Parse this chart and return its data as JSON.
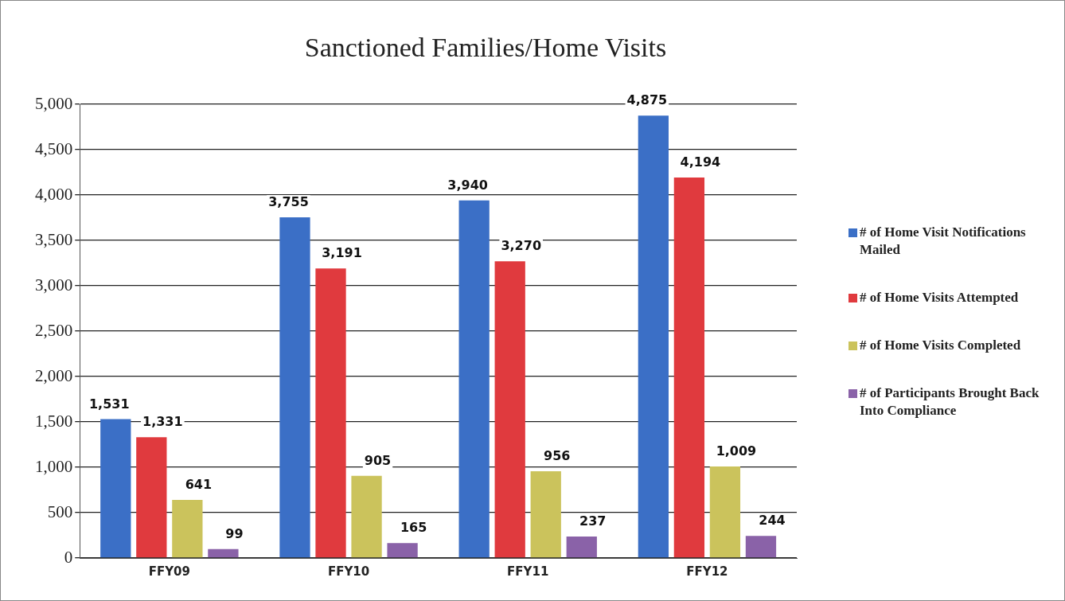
{
  "chart_data": {
    "type": "bar",
    "title": "Sanctioned Families/Home Visits",
    "categories": [
      "FFY09",
      "FFY10",
      "FFY11",
      "FFY12"
    ],
    "series": [
      {
        "name": "# of Home Visit Notifications Mailed",
        "color": "#3b6fc6",
        "values": [
          1531,
          3755,
          3940,
          4875
        ],
        "value_labels": [
          "1,531",
          "3,755",
          "3,940",
          "4,875"
        ]
      },
      {
        "name": "# of Home Visits Attempted",
        "color": "#e03a3e",
        "values": [
          1331,
          3191,
          3270,
          4194
        ],
        "value_labels": [
          "1,331",
          "3,191",
          "3,270",
          "4,194"
        ]
      },
      {
        "name": "# of Home Visits Completed",
        "color": "#cbc35c",
        "values": [
          641,
          905,
          956,
          1009
        ],
        "value_labels": [
          "641",
          "905",
          "956",
          "1,009"
        ]
      },
      {
        "name": "# of Participants Brought Back Into Compliance",
        "color": "#8a62a8",
        "values": [
          99,
          165,
          237,
          244
        ],
        "value_labels": [
          "99",
          "165",
          "237",
          "244"
        ]
      }
    ],
    "ylim": [
      0,
      5000
    ],
    "yticks": [
      0,
      500,
      {
        "value": 1000,
        "label": "1,000"
      },
      {
        "value": 1500,
        "label": "1,500"
      },
      {
        "value": 2000,
        "label": "2,000"
      },
      {
        "value": 2500,
        "label": "2,500"
      },
      {
        "value": 3000,
        "label": "3,000"
      },
      {
        "value": 3500,
        "label": "3,500"
      },
      {
        "value": 4000,
        "label": "4,000"
      },
      {
        "value": 4500,
        "label": "4,500"
      },
      {
        "value": 5000,
        "label": "5,000"
      }
    ],
    "grid": "y",
    "legend": "right"
  }
}
